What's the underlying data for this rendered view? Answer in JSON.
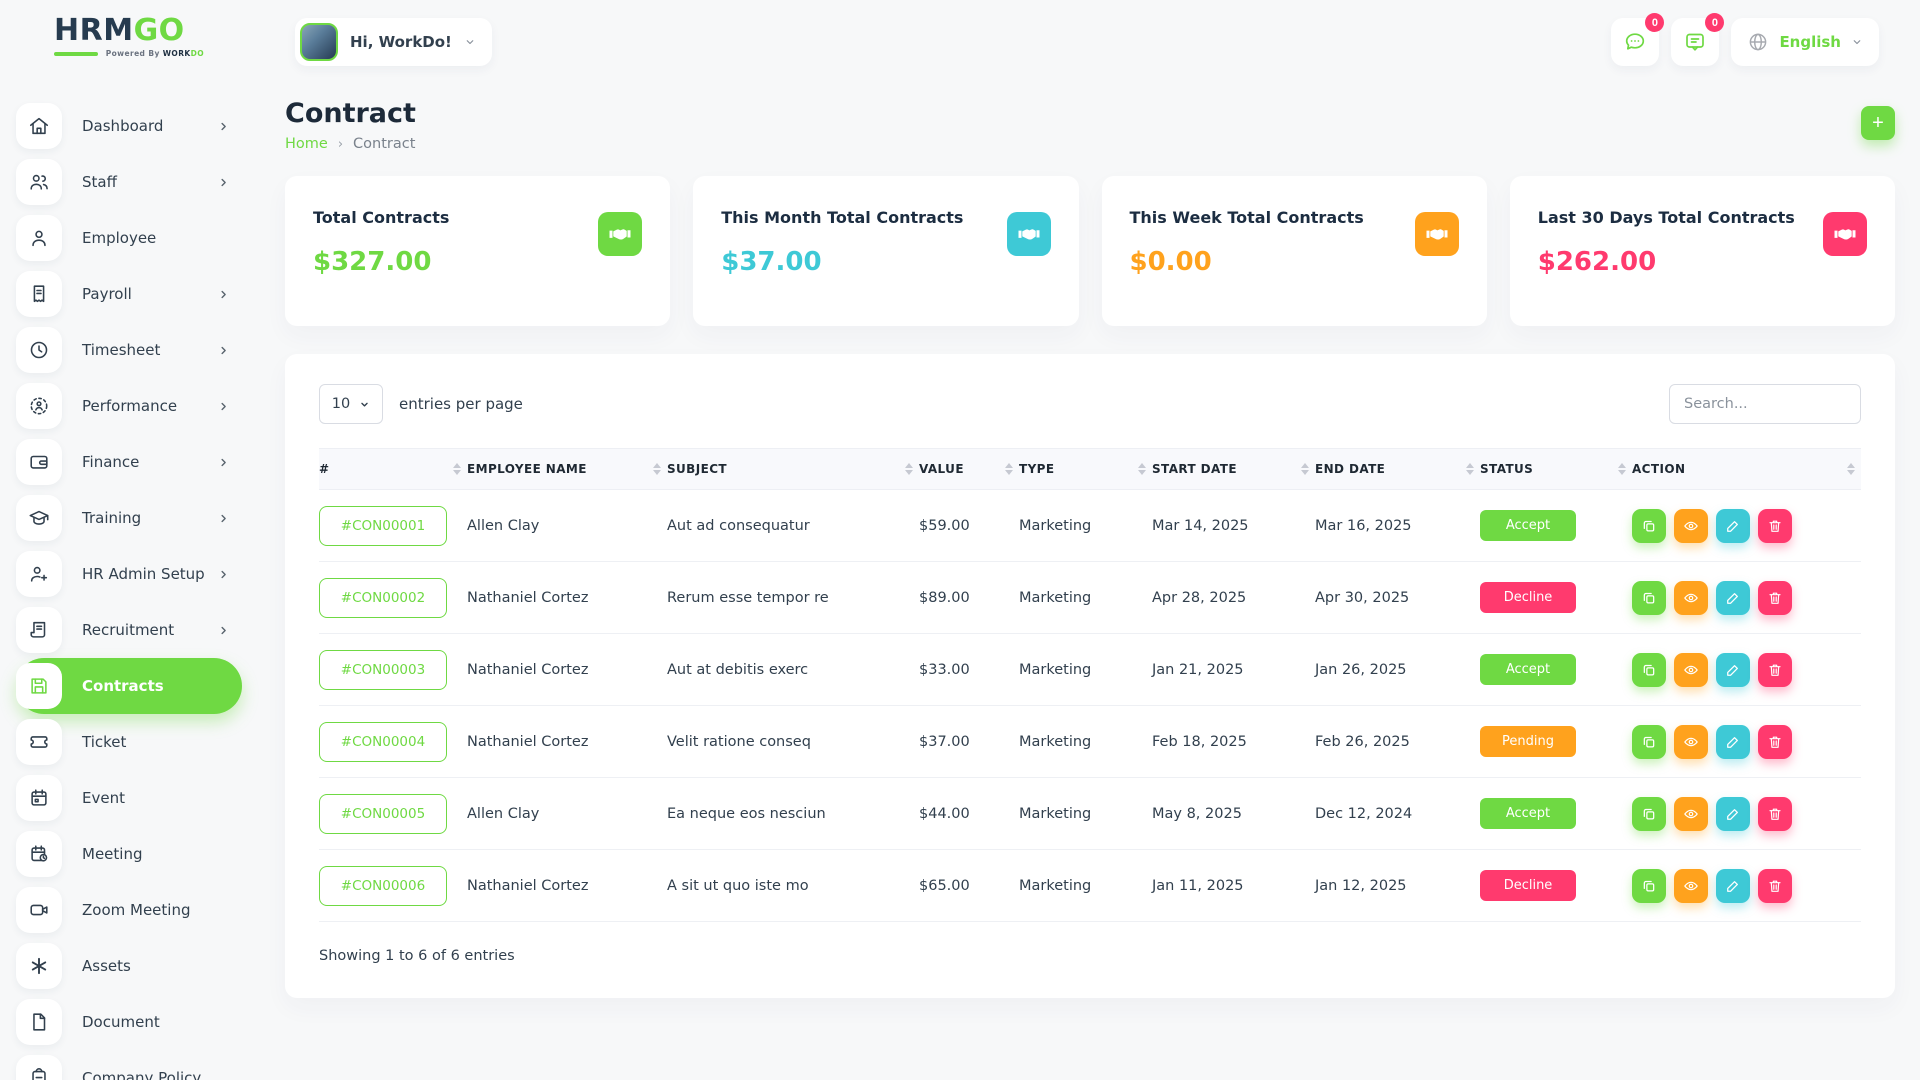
{
  "colors": {
    "primary_green": "#6fd943",
    "cyan": "#3ec9d6",
    "orange": "#ffa21d",
    "pink": "#ff3a6e",
    "dark_text": "#32404e"
  },
  "header": {
    "logo_text_1": "HRM",
    "logo_text_2": "GO",
    "logo_tagline_prefix": "Powered By ",
    "logo_tagline_brand_1": "WORK",
    "logo_tagline_brand_2": "DO",
    "greeting": "Hi, WorkDo!",
    "notifications": [
      {
        "icon": "chat-bubble-icon",
        "badge": "0"
      },
      {
        "icon": "feedback-message-icon",
        "badge": "0"
      }
    ],
    "language": "English"
  },
  "sidebar": {
    "items": [
      {
        "label": "Dashboard",
        "icon": "home-icon",
        "chevron": true,
        "active": false
      },
      {
        "label": "Staff",
        "icon": "staff-icon",
        "chevron": true,
        "active": false
      },
      {
        "label": "Employee",
        "icon": "employee-icon",
        "chevron": false,
        "active": false
      },
      {
        "label": "Payroll",
        "icon": "payroll-icon",
        "chevron": true,
        "active": false
      },
      {
        "label": "Timesheet",
        "icon": "timesheet-icon",
        "chevron": true,
        "active": false
      },
      {
        "label": "Performance",
        "icon": "performance-icon",
        "chevron": true,
        "active": false
      },
      {
        "label": "Finance",
        "icon": "finance-icon",
        "chevron": true,
        "active": false
      },
      {
        "label": "Training",
        "icon": "training-icon",
        "chevron": true,
        "active": false
      },
      {
        "label": "HR Admin Setup",
        "icon": "hr-admin-icon",
        "chevron": true,
        "active": false
      },
      {
        "label": "Recruitment",
        "icon": "recruitment-icon",
        "chevron": true,
        "active": false
      },
      {
        "label": "Contracts",
        "icon": "contracts-icon",
        "chevron": false,
        "active": true
      },
      {
        "label": "Ticket",
        "icon": "ticket-icon",
        "chevron": false,
        "active": false
      },
      {
        "label": "Event",
        "icon": "event-icon",
        "chevron": false,
        "active": false
      },
      {
        "label": "Meeting",
        "icon": "meeting-icon",
        "chevron": false,
        "active": false
      },
      {
        "label": "Zoom Meeting",
        "icon": "zoom-meeting-icon",
        "chevron": false,
        "active": false
      },
      {
        "label": "Assets",
        "icon": "assets-icon",
        "chevron": false,
        "active": false
      },
      {
        "label": "Document",
        "icon": "document-icon",
        "chevron": false,
        "active": false
      },
      {
        "label": "Company Policy",
        "icon": "company-policy-icon",
        "chevron": false,
        "active": false
      }
    ]
  },
  "page": {
    "title": "Contract",
    "breadcrumb_home": "Home",
    "breadcrumb_current": "Contract",
    "add_button": "+"
  },
  "stats": [
    {
      "title": "Total Contracts",
      "value": "$327.00",
      "accent": "#6fd943",
      "icon": "handshake-icon"
    },
    {
      "title": "This Month Total Contracts",
      "value": "$37.00",
      "accent": "#3ec9d6",
      "icon": "handshake-icon"
    },
    {
      "title": "This Week Total Contracts",
      "value": "$0.00",
      "accent": "#ffa21d",
      "icon": "handshake-icon"
    },
    {
      "title": "Last 30 Days Total Contracts",
      "value": "$262.00",
      "accent": "#ff3a6e",
      "icon": "handshake-icon"
    }
  ],
  "table": {
    "page_size": "10",
    "entries_label": "entries per page",
    "search_placeholder": "Search...",
    "columns": [
      "#",
      "EMPLOYEE NAME",
      "SUBJECT",
      "VALUE",
      "TYPE",
      "START DATE",
      "END DATE",
      "STATUS",
      "ACTION"
    ],
    "rows": [
      {
        "id": "#CON00001",
        "employee": "Allen Clay",
        "subject": "Aut ad consequatur",
        "value": "$59.00",
        "type": "Marketing",
        "start": "Mar 14, 2025",
        "end": "Mar 16, 2025",
        "status": "Accept"
      },
      {
        "id": "#CON00002",
        "employee": "Nathaniel Cortez",
        "subject": "Rerum esse tempor re",
        "value": "$89.00",
        "type": "Marketing",
        "start": "Apr 28, 2025",
        "end": "Apr 30, 2025",
        "status": "Decline"
      },
      {
        "id": "#CON00003",
        "employee": "Nathaniel Cortez",
        "subject": "Aut at debitis exerc",
        "value": "$33.00",
        "type": "Marketing",
        "start": "Jan 21, 2025",
        "end": "Jan 26, 2025",
        "status": "Accept"
      },
      {
        "id": "#CON00004",
        "employee": "Nathaniel Cortez",
        "subject": "Velit ratione conseq",
        "value": "$37.00",
        "type": "Marketing",
        "start": "Feb 18, 2025",
        "end": "Feb 26, 2025",
        "status": "Pending"
      },
      {
        "id": "#CON00005",
        "employee": "Allen Clay",
        "subject": "Ea neque eos nesciun",
        "value": "$44.00",
        "type": "Marketing",
        "start": "May 8, 2025",
        "end": "Dec 12, 2024",
        "status": "Accept"
      },
      {
        "id": "#CON00006",
        "employee": "Nathaniel Cortez",
        "subject": "A sit ut quo iste mo",
        "value": "$65.00",
        "type": "Marketing",
        "start": "Jan 11, 2025",
        "end": "Jan 12, 2025",
        "status": "Decline"
      }
    ],
    "status_colors": {
      "Accept": "#6fd943",
      "Decline": "#ff3a6e",
      "Pending": "#ffa21d"
    },
    "actions": [
      "duplicate",
      "view",
      "edit",
      "delete"
    ],
    "footer": "Showing 1 to 6 of 6 entries"
  }
}
